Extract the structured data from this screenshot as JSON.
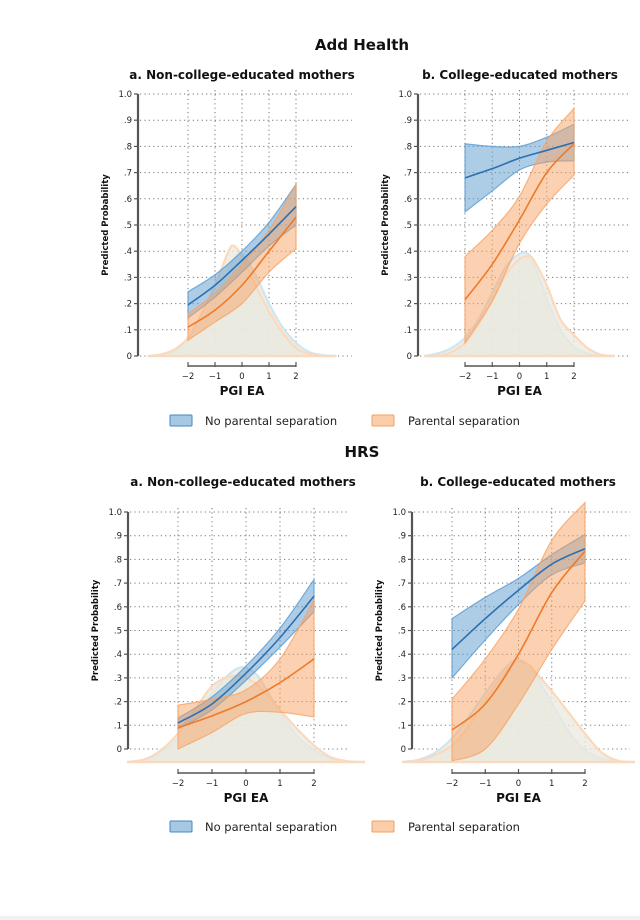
{
  "colors": {
    "blue_line": "#2f6fb0",
    "blue_band": "#5b9bd0",
    "orange_line": "#ee7a2a",
    "orange_band": "#f7a465",
    "density_fill": "#e9e8df",
    "blue_density_edge": "#cfe6f2",
    "orange_density_edge": "#fbd9bd"
  },
  "legend": {
    "items": [
      {
        "label": "No parental separation",
        "color": "#5b9bd0"
      },
      {
        "label": "Parental separation",
        "color": "#f7a465"
      }
    ]
  },
  "chart_data": [
    {
      "type": "line",
      "section": "Add Health",
      "title": "a. Non-college-educated mothers",
      "xlabel": "PGI EA",
      "ylabel": "Predicted Probability",
      "xticks": [
        "−2",
        "−1",
        "0",
        "1",
        "2"
      ],
      "yticks": [
        "0",
        ".1",
        ".2",
        ".3",
        ".4",
        ".5",
        ".6",
        ".7",
        ".8",
        ".9",
        "1.0"
      ],
      "xlim": [
        -2,
        2
      ],
      "ylim": [
        0,
        1
      ],
      "grid": true,
      "x": [
        -2,
        -1,
        0,
        1,
        2
      ],
      "series": [
        {
          "name": "No parental separation",
          "values": [
            0.195,
            0.27,
            0.365,
            0.465,
            0.57
          ],
          "upper": [
            0.245,
            0.31,
            0.4,
            0.51,
            0.655
          ],
          "lower": [
            0.145,
            0.225,
            0.32,
            0.42,
            0.5
          ]
        },
        {
          "name": "Parental separation",
          "values": [
            0.11,
            0.175,
            0.27,
            0.4,
            0.53
          ],
          "upper": [
            0.16,
            0.24,
            0.35,
            0.48,
            0.655
          ],
          "lower": [
            0.06,
            0.13,
            0.2,
            0.32,
            0.41
          ]
        }
      ],
      "density": {
        "x": [
          -3.5,
          -3,
          -2.5,
          -2,
          -1.5,
          -1,
          -0.5,
          -0.3,
          0,
          0.5,
          1,
          1.5,
          2,
          2.5,
          3,
          3.5
        ],
        "no_separation": [
          0.0,
          0.005,
          0.02,
          0.06,
          0.13,
          0.22,
          0.33,
          0.37,
          0.39,
          0.31,
          0.2,
          0.11,
          0.05,
          0.015,
          0.003,
          0.0
        ],
        "separation": [
          0.0,
          0.006,
          0.025,
          0.07,
          0.16,
          0.27,
          0.4,
          0.42,
          0.38,
          0.27,
          0.17,
          0.09,
          0.03,
          0.008,
          0.0,
          0.0
        ]
      }
    },
    {
      "type": "line",
      "section": "Add Health",
      "title": "b. College-educated mothers",
      "xlabel": "PGI EA",
      "ylabel": "Predicted Probability",
      "xticks": [
        "−2",
        "−1",
        "0",
        "1",
        "2"
      ],
      "yticks": [
        "0",
        ".1",
        ".2",
        ".3",
        ".4",
        ".5",
        ".6",
        ".7",
        ".8",
        ".9",
        "1.0"
      ],
      "xlim": [
        -2,
        2
      ],
      "ylim": [
        0,
        1
      ],
      "grid": true,
      "x": [
        -2,
        -1,
        0,
        1,
        2
      ],
      "series": [
        {
          "name": "No parental separation",
          "values": [
            0.68,
            0.715,
            0.755,
            0.785,
            0.815
          ],
          "upper": [
            0.81,
            0.8,
            0.8,
            0.835,
            0.885
          ],
          "lower": [
            0.55,
            0.63,
            0.71,
            0.74,
            0.745
          ]
        },
        {
          "name": "Parental separation",
          "values": [
            0.215,
            0.35,
            0.52,
            0.7,
            0.81
          ],
          "upper": [
            0.38,
            0.48,
            0.61,
            0.82,
            0.945
          ],
          "lower": [
            0.05,
            0.21,
            0.43,
            0.58,
            0.69
          ]
        }
      ],
      "density": {
        "x": [
          -3.5,
          -3,
          -2.5,
          -2,
          -1.5,
          -1,
          -0.5,
          0,
          0.3,
          0.5,
          1,
          1.5,
          2,
          2.5,
          3,
          3.5
        ],
        "no_separation": [
          0.0,
          0.01,
          0.03,
          0.07,
          0.14,
          0.24,
          0.34,
          0.39,
          0.39,
          0.36,
          0.22,
          0.1,
          0.035,
          0.01,
          0.002,
          0.0
        ],
        "separation": [
          0.0,
          0.0,
          0.015,
          0.05,
          0.12,
          0.21,
          0.31,
          0.37,
          0.38,
          0.37,
          0.27,
          0.14,
          0.08,
          0.03,
          0.005,
          0.0
        ]
      }
    },
    {
      "type": "line",
      "section": "HRS",
      "title": "a. Non-college-educated mothers",
      "xlabel": "PGI EA",
      "ylabel": "Predicted Probability",
      "xticks": [
        "−2",
        "−1",
        "0",
        "1",
        "2"
      ],
      "yticks": [
        "0",
        ".1",
        ".2",
        ".3",
        ".4",
        ".5",
        ".6",
        ".7",
        ".8",
        ".9",
        "1.0"
      ],
      "xlim": [
        -2,
        2
      ],
      "ylim": [
        0,
        1
      ],
      "grid": true,
      "x": [
        -2,
        -1,
        0,
        1,
        2
      ],
      "series": [
        {
          "name": "No parental separation",
          "values": [
            0.11,
            0.19,
            0.32,
            0.47,
            0.645
          ],
          "upper": [
            0.13,
            0.22,
            0.35,
            0.51,
            0.715
          ],
          "lower": [
            0.085,
            0.165,
            0.29,
            0.43,
            0.58
          ]
        },
        {
          "name": "Parental separation",
          "values": [
            0.09,
            0.14,
            0.2,
            0.28,
            0.38
          ],
          "upper": [
            0.185,
            0.21,
            0.25,
            0.38,
            0.63
          ],
          "lower": [
            0.0,
            0.07,
            0.15,
            0.155,
            0.135
          ]
        }
      ],
      "density": {
        "x": [
          -3.5,
          -3,
          -2.5,
          -2,
          -1.5,
          -1,
          -0.5,
          -0.1,
          0.3,
          0.5,
          1,
          1.5,
          2,
          2.5,
          3,
          3.5
        ],
        "no_separation": [
          0.0,
          0.01,
          0.04,
          0.1,
          0.19,
          0.29,
          0.37,
          0.4,
          0.37,
          0.33,
          0.21,
          0.11,
          0.05,
          0.015,
          0.003,
          0.0
        ],
        "separation": [
          0.0,
          0.01,
          0.05,
          0.12,
          0.22,
          0.32,
          0.36,
          0.36,
          0.33,
          0.3,
          0.22,
          0.14,
          0.07,
          0.02,
          0.003,
          0.0
        ]
      }
    },
    {
      "type": "line",
      "section": "HRS",
      "title": "b. College-educated mothers",
      "xlabel": "PGI EA",
      "ylabel": "Predicted Probability",
      "xticks": [
        "−2",
        "−1",
        "0",
        "1",
        "2"
      ],
      "yticks": [
        "0",
        ".1",
        ".2",
        ".3",
        ".4",
        ".5",
        ".6",
        ".7",
        ".8",
        ".9",
        "1.0"
      ],
      "xlim": [
        -2,
        2
      ],
      "ylim": [
        0,
        1
      ],
      "grid": true,
      "x": [
        -2,
        -1,
        0,
        1,
        2
      ],
      "series": [
        {
          "name": "No parental separation",
          "values": [
            0.42,
            0.55,
            0.67,
            0.78,
            0.845
          ],
          "upper": [
            0.55,
            0.64,
            0.72,
            0.82,
            0.905
          ],
          "lower": [
            0.3,
            0.46,
            0.61,
            0.735,
            0.785
          ]
        },
        {
          "name": "Parental separation",
          "values": [
            0.08,
            0.19,
            0.4,
            0.66,
            0.835
          ],
          "upper": [
            0.21,
            0.38,
            0.59,
            0.88,
            1.04
          ],
          "lower": [
            -0.05,
            0.0,
            0.19,
            0.42,
            0.625
          ]
        }
      ],
      "density": {
        "x": [
          -3.5,
          -3,
          -2.5,
          -2,
          -1.5,
          -1,
          -0.5,
          -0.1,
          0.3,
          0.5,
          1,
          1.5,
          2,
          2.5,
          3,
          3.5
        ],
        "no_separation": [
          0.0,
          0.01,
          0.04,
          0.1,
          0.19,
          0.29,
          0.38,
          0.43,
          0.41,
          0.37,
          0.25,
          0.13,
          0.05,
          0.015,
          0.003,
          0.0
        ],
        "separation": [
          0.0,
          0.005,
          0.03,
          0.07,
          0.15,
          0.26,
          0.36,
          0.42,
          0.41,
          0.38,
          0.3,
          0.21,
          0.12,
          0.04,
          0.005,
          0.0
        ]
      }
    }
  ],
  "sections": [
    {
      "title": "Add Health"
    },
    {
      "title": "HRS"
    }
  ]
}
